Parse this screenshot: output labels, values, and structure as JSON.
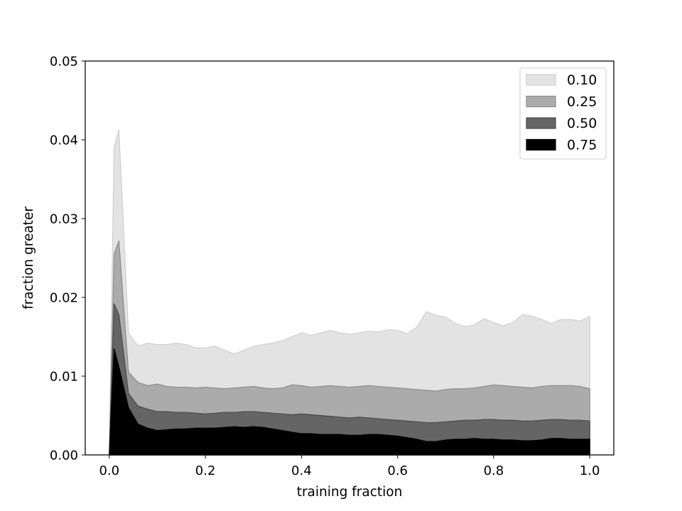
{
  "chart_data": {
    "type": "area",
    "title": "",
    "xlabel": "training fraction",
    "ylabel": "fraction greater",
    "xlim": [
      -0.05,
      1.05
    ],
    "ylim": [
      0,
      0.05
    ],
    "x_ticks": [
      "0.0",
      "0.2",
      "0.4",
      "0.6",
      "0.8",
      "1.0"
    ],
    "y_ticks": [
      "0.00",
      "0.01",
      "0.02",
      "0.03",
      "0.04",
      "0.05"
    ],
    "grid": false,
    "legend_position": "top-right",
    "x": [
      0.0,
      0.01,
      0.02,
      0.04,
      0.06,
      0.08,
      0.1,
      0.12,
      0.14,
      0.16,
      0.18,
      0.2,
      0.22,
      0.24,
      0.26,
      0.28,
      0.3,
      0.32,
      0.34,
      0.36,
      0.38,
      0.4,
      0.42,
      0.44,
      0.46,
      0.48,
      0.5,
      0.52,
      0.54,
      0.56,
      0.58,
      0.6,
      0.62,
      0.64,
      0.66,
      0.68,
      0.7,
      0.72,
      0.74,
      0.76,
      0.78,
      0.8,
      0.82,
      0.84,
      0.86,
      0.88,
      0.9,
      0.92,
      0.94,
      0.96,
      0.98,
      1.0
    ],
    "series": [
      {
        "name": "0.10",
        "color": "#e3e3e3",
        "values": [
          0.0,
          0.039,
          0.0413,
          0.0155,
          0.0138,
          0.0142,
          0.014,
          0.014,
          0.0142,
          0.014,
          0.0136,
          0.0136,
          0.0138,
          0.0133,
          0.0128,
          0.0133,
          0.0138,
          0.014,
          0.0142,
          0.0145,
          0.015,
          0.0155,
          0.0152,
          0.0155,
          0.0158,
          0.0155,
          0.0153,
          0.0155,
          0.0157,
          0.0156,
          0.0159,
          0.0158,
          0.0154,
          0.0162,
          0.0182,
          0.0177,
          0.0175,
          0.0167,
          0.0163,
          0.0165,
          0.0173,
          0.0168,
          0.0164,
          0.0168,
          0.0178,
          0.0176,
          0.0172,
          0.0167,
          0.0172,
          0.0172,
          0.017,
          0.0176
        ]
      },
      {
        "name": "0.25",
        "color": "#ababab",
        "values": [
          0.0,
          0.0255,
          0.0272,
          0.0105,
          0.0092,
          0.0088,
          0.009,
          0.0087,
          0.0086,
          0.0086,
          0.0085,
          0.0086,
          0.0085,
          0.0084,
          0.0085,
          0.0086,
          0.0087,
          0.0085,
          0.0084,
          0.0085,
          0.0089,
          0.0088,
          0.0086,
          0.0087,
          0.0088,
          0.0087,
          0.0086,
          0.0087,
          0.0088,
          0.0087,
          0.0086,
          0.0085,
          0.0084,
          0.0083,
          0.0082,
          0.0081,
          0.0083,
          0.0084,
          0.0084,
          0.0085,
          0.0087,
          0.0089,
          0.0088,
          0.0087,
          0.0086,
          0.0085,
          0.0087,
          0.0088,
          0.0088,
          0.0088,
          0.0087,
          0.0084
        ]
      },
      {
        "name": "0.50",
        "color": "#656565",
        "values": [
          0.0,
          0.0192,
          0.0178,
          0.0078,
          0.0062,
          0.0058,
          0.0055,
          0.0055,
          0.0054,
          0.0054,
          0.0053,
          0.0052,
          0.0053,
          0.0054,
          0.0054,
          0.0055,
          0.0055,
          0.0054,
          0.0053,
          0.0052,
          0.0051,
          0.0052,
          0.0051,
          0.005,
          0.0049,
          0.0048,
          0.0047,
          0.0048,
          0.0047,
          0.0046,
          0.0045,
          0.0044,
          0.0043,
          0.0042,
          0.0041,
          0.0041,
          0.0042,
          0.0043,
          0.0044,
          0.0044,
          0.0045,
          0.0045,
          0.0044,
          0.0044,
          0.0043,
          0.0043,
          0.0044,
          0.0045,
          0.0045,
          0.0044,
          0.0044,
          0.0043
        ]
      },
      {
        "name": "0.75",
        "color": "#000000",
        "values": [
          0.0,
          0.0135,
          0.0112,
          0.006,
          0.0039,
          0.0034,
          0.0031,
          0.0032,
          0.0033,
          0.0033,
          0.0034,
          0.0034,
          0.0034,
          0.0035,
          0.0036,
          0.0035,
          0.0036,
          0.0035,
          0.0033,
          0.0031,
          0.0029,
          0.0027,
          0.0027,
          0.0026,
          0.0026,
          0.0026,
          0.0025,
          0.0025,
          0.0026,
          0.0026,
          0.0025,
          0.0024,
          0.0022,
          0.002,
          0.0017,
          0.0017,
          0.0019,
          0.002,
          0.002,
          0.0021,
          0.002,
          0.002,
          0.0019,
          0.0019,
          0.0018,
          0.0018,
          0.0019,
          0.0021,
          0.0021,
          0.002,
          0.002,
          0.002
        ]
      }
    ]
  }
}
